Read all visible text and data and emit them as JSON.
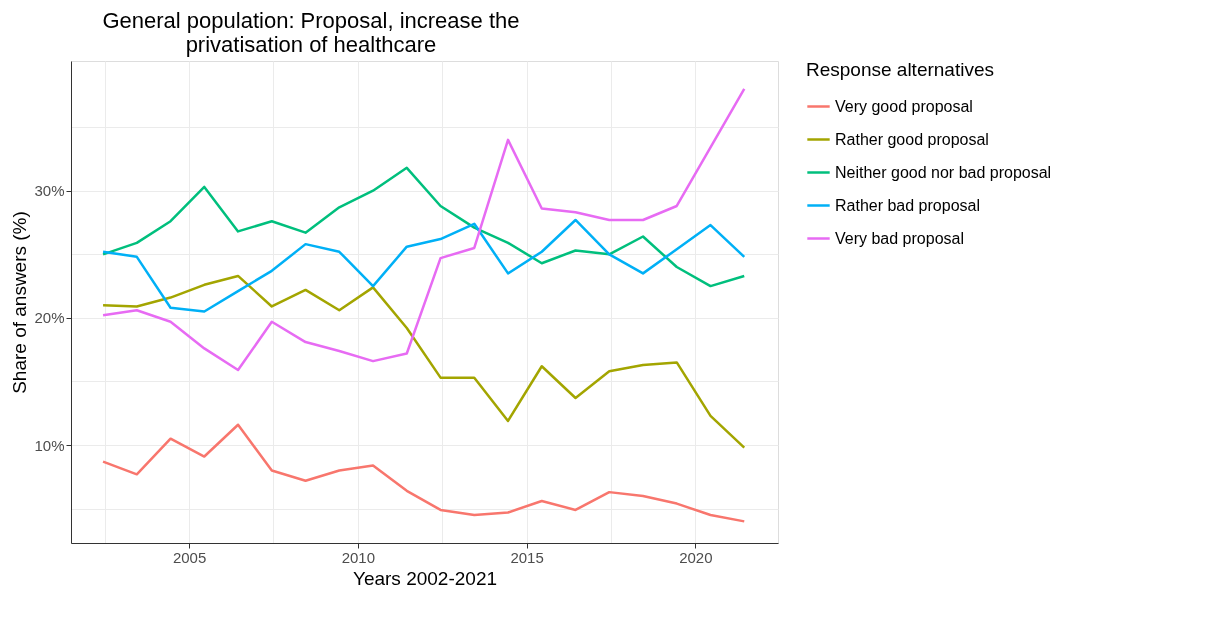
{
  "chart_data": {
    "type": "line",
    "title": "General population: Proposal, increase the\nprivatisation of healthcare",
    "xlabel": "Years 2002-2021",
    "ylabel": "Share of answers (%)",
    "legend_title": "Response alternatives",
    "legend": "right",
    "grid": true,
    "line_style": "solid",
    "marker": "none",
    "x": [
      2002.45,
      2003.45,
      2004.45,
      2005.45,
      2006.45,
      2007.45,
      2008.45,
      2009.45,
      2010.45,
      2011.45,
      2012.45,
      2013.45,
      2014.45,
      2015.45,
      2016.45,
      2017.45,
      2018.45,
      2019.45,
      2020.45,
      2021.45
    ],
    "xlim": [
      2001.5,
      2022.45
    ],
    "xticks": [
      {
        "value": 2002.5,
        "label": null
      },
      2005,
      {
        "value": 2007.5,
        "label": null
      },
      2010,
      {
        "value": 2012.5,
        "label": null
      },
      2015,
      {
        "value": 2017.5,
        "label": null
      },
      2020
    ],
    "ylim": [
      2.3,
      40.2
    ],
    "yticks": [
      {
        "value": 5,
        "label": null
      },
      {
        "value": 10,
        "label": "10%"
      },
      {
        "value": 15,
        "label": null
      },
      {
        "value": 20,
        "label": "20%"
      },
      {
        "value": 25,
        "label": null
      },
      {
        "value": 30,
        "label": "30%"
      },
      {
        "value": 35,
        "label": null
      }
    ],
    "series": [
      {
        "name": "Very good proposal",
        "color": "#f8766d",
        "values": [
          8.7,
          7.7,
          10.5,
          9.1,
          11.6,
          8.0,
          7.2,
          8.0,
          8.4,
          6.4,
          4.9,
          4.5,
          4.7,
          5.6,
          4.9,
          6.3,
          6.0,
          5.4,
          4.5,
          4.0
        ]
      },
      {
        "name": "Rather good proposal",
        "color": "#a3a500",
        "values": [
          21.0,
          20.9,
          21.6,
          22.6,
          23.3,
          20.9,
          22.2,
          20.6,
          22.4,
          19.2,
          15.3,
          15.3,
          11.9,
          16.2,
          13.7,
          15.8,
          16.3,
          16.5,
          12.3,
          9.8
        ]
      },
      {
        "name": "Neither good  nor bad proposal",
        "color": "#00bf7d",
        "values": [
          25.0,
          25.9,
          27.6,
          30.3,
          26.8,
          27.6,
          26.7,
          28.7,
          30.0,
          31.8,
          28.8,
          27.1,
          25.9,
          24.3,
          25.3,
          25.0,
          26.4,
          24.0,
          22.5,
          23.3
        ]
      },
      {
        "name": "Rather bad proposal",
        "color": "#00b0f6",
        "values": [
          25.2,
          24.8,
          20.8,
          20.5,
          22.1,
          23.7,
          25.8,
          25.2,
          22.5,
          25.6,
          26.2,
          27.4,
          23.5,
          25.2,
          27.7,
          25.0,
          23.5,
          25.4,
          27.3,
          24.8
        ]
      },
      {
        "name": "Very bad proposal",
        "color": "#e76bf3",
        "values": [
          20.2,
          20.6,
          19.7,
          17.6,
          15.9,
          19.7,
          18.1,
          17.4,
          16.6,
          17.2,
          24.7,
          25.5,
          34.0,
          28.6,
          28.3,
          27.7,
          27.7,
          28.8,
          33.4,
          38.0
        ]
      }
    ]
  }
}
